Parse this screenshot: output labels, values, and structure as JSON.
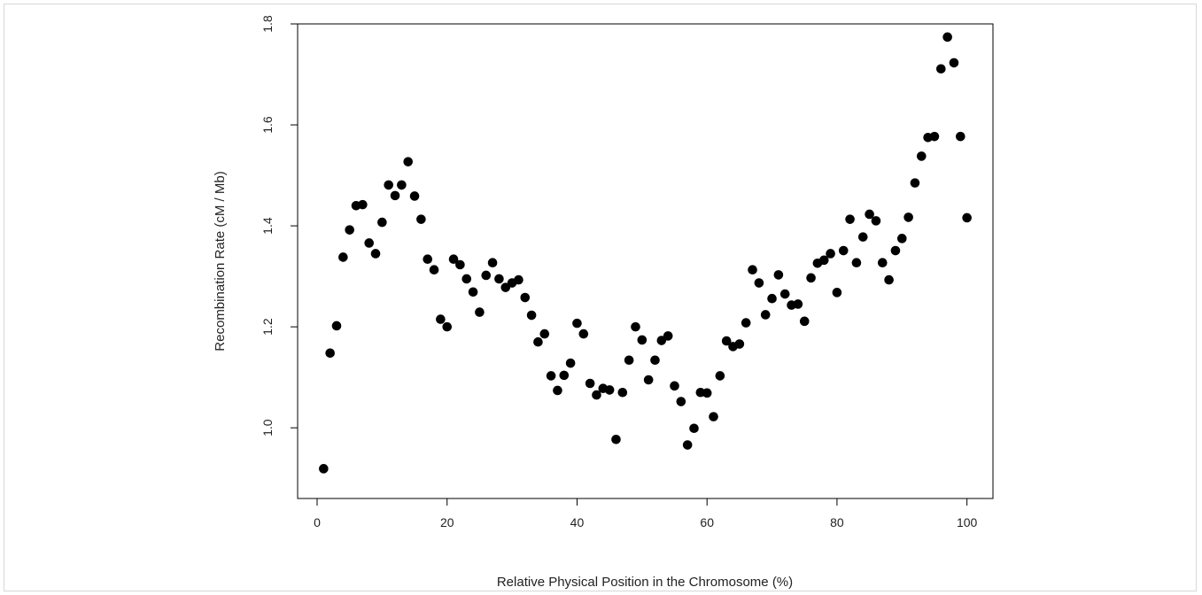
{
  "chart_data": {
    "type": "scatter",
    "title": "",
    "xlabel": "Relative Physical Position in the Chromosome (%)",
    "ylabel": "Recombination Rate (cM / Mb)",
    "xlim": [
      -3,
      104
    ],
    "ylim": [
      0.86,
      1.8
    ],
    "xticks": [
      0,
      20,
      40,
      60,
      80,
      100
    ],
    "yticks": [
      1.0,
      1.2,
      1.4,
      1.6,
      1.8
    ],
    "xtick_labels": [
      "0",
      "20",
      "40",
      "60",
      "80",
      "100"
    ],
    "ytick_labels": [
      "1.0",
      "1.2",
      "1.4",
      "1.6",
      "1.8"
    ],
    "grid": false,
    "legend": "none",
    "marker_color": "#000000",
    "points": [
      [
        1,
        0.919
      ],
      [
        2,
        1.148
      ],
      [
        3,
        1.202
      ],
      [
        4,
        1.338
      ],
      [
        5,
        1.392
      ],
      [
        6,
        1.44
      ],
      [
        7,
        1.442
      ],
      [
        8,
        1.366
      ],
      [
        9,
        1.345
      ],
      [
        10,
        1.407
      ],
      [
        11,
        1.481
      ],
      [
        12,
        1.46
      ],
      [
        13,
        1.481
      ],
      [
        14,
        1.527
      ],
      [
        15,
        1.459
      ],
      [
        16,
        1.413
      ],
      [
        17,
        1.334
      ],
      [
        18,
        1.313
      ],
      [
        19,
        1.215
      ],
      [
        20,
        1.2
      ],
      [
        21,
        1.334
      ],
      [
        22,
        1.323
      ],
      [
        23,
        1.295
      ],
      [
        24,
        1.269
      ],
      [
        25,
        1.229
      ],
      [
        26,
        1.302
      ],
      [
        27,
        1.327
      ],
      [
        28,
        1.295
      ],
      [
        29,
        1.278
      ],
      [
        30,
        1.287
      ],
      [
        31,
        1.293
      ],
      [
        32,
        1.258
      ],
      [
        33,
        1.223
      ],
      [
        34,
        1.17
      ],
      [
        35,
        1.186
      ],
      [
        36,
        1.103
      ],
      [
        37,
        1.074
      ],
      [
        38,
        1.104
      ],
      [
        39,
        1.128
      ],
      [
        40,
        1.207
      ],
      [
        41,
        1.186
      ],
      [
        42,
        1.088
      ],
      [
        43,
        1.065
      ],
      [
        44,
        1.078
      ],
      [
        45,
        1.075
      ],
      [
        46,
        0.977
      ],
      [
        47,
        1.07
      ],
      [
        48,
        1.134
      ],
      [
        49,
        1.2
      ],
      [
        50,
        1.174
      ],
      [
        51,
        1.095
      ],
      [
        52,
        1.134
      ],
      [
        53,
        1.173
      ],
      [
        54,
        1.182
      ],
      [
        55,
        1.083
      ],
      [
        56,
        1.052
      ],
      [
        57,
        0.966
      ],
      [
        58,
        0.999
      ],
      [
        59,
        1.07
      ],
      [
        60,
        1.069
      ],
      [
        61,
        1.022
      ],
      [
        62,
        1.103
      ],
      [
        63,
        1.172
      ],
      [
        64,
        1.161
      ],
      [
        65,
        1.166
      ],
      [
        66,
        1.208
      ],
      [
        67,
        1.313
      ],
      [
        68,
        1.287
      ],
      [
        69,
        1.224
      ],
      [
        70,
        1.256
      ],
      [
        71,
        1.303
      ],
      [
        72,
        1.265
      ],
      [
        73,
        1.243
      ],
      [
        74,
        1.245
      ],
      [
        75,
        1.211
      ],
      [
        76,
        1.297
      ],
      [
        77,
        1.326
      ],
      [
        78,
        1.332
      ],
      [
        79,
        1.345
      ],
      [
        80,
        1.268
      ],
      [
        81,
        1.351
      ],
      [
        82,
        1.413
      ],
      [
        83,
        1.327
      ],
      [
        84,
        1.378
      ],
      [
        85,
        1.423
      ],
      [
        86,
        1.41
      ],
      [
        87,
        1.327
      ],
      [
        88,
        1.293
      ],
      [
        89,
        1.351
      ],
      [
        90,
        1.375
      ],
      [
        91,
        1.417
      ],
      [
        92,
        1.485
      ],
      [
        93,
        1.538
      ],
      [
        94,
        1.575
      ],
      [
        95,
        1.577
      ],
      [
        96,
        1.711
      ],
      [
        97,
        1.774
      ],
      [
        98,
        1.723
      ],
      [
        99,
        1.577
      ],
      [
        100,
        1.416
      ]
    ]
  }
}
